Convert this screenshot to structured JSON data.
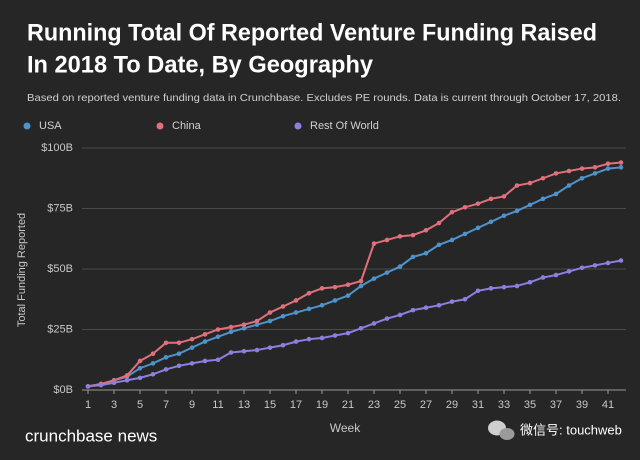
{
  "chart_data": {
    "type": "line",
    "title": [
      "Running Total Of Reported Venture Funding Raised",
      "In 2018 To Date, By Geography"
    ],
    "subtitle": "Based on reported venture funding data in Crunchbase. Excludes PE rounds.  Data is current through October 17, 2018.",
    "x_label": "Week",
    "y_label": "Total Funding Reported",
    "brand": "crunchbase news",
    "watermark": "微信号: touchweb",
    "x": [
      1,
      2,
      3,
      4,
      5,
      6,
      7,
      8,
      9,
      10,
      11,
      12,
      13,
      14,
      15,
      16,
      17,
      18,
      19,
      20,
      21,
      22,
      23,
      24,
      25,
      26,
      27,
      28,
      29,
      30,
      31,
      32,
      33,
      34,
      35,
      36,
      37,
      38,
      39,
      40,
      41,
      42
    ],
    "xlim": [
      1,
      42
    ],
    "xticks": [
      1,
      3,
      5,
      7,
      9,
      11,
      13,
      15,
      17,
      19,
      21,
      23,
      25,
      27,
      29,
      31,
      33,
      35,
      37,
      39,
      41
    ],
    "ylim": [
      0,
      100
    ],
    "yticks": [
      {
        "value": 0,
        "label": "$0B"
      },
      {
        "value": 25,
        "label": "$25B"
      },
      {
        "value": 50,
        "label": "$50B"
      },
      {
        "value": 75,
        "label": "$75B"
      },
      {
        "value": 100,
        "label": "$100B"
      }
    ],
    "grid": true,
    "series": [
      {
        "name": "USA",
        "color": "#4f93cc",
        "values": [
          1.5,
          2.5,
          4,
          5.5,
          9,
          11,
          13.5,
          15,
          17.5,
          20,
          22,
          24,
          25.5,
          27,
          28.5,
          30.5,
          32,
          33.5,
          35,
          37,
          39,
          43,
          46,
          48.5,
          51,
          55,
          56.5,
          60,
          62,
          64.5,
          67,
          69.5,
          72,
          74,
          76.5,
          79,
          81,
          84.5,
          87.5,
          89.5,
          91.5,
          92
        ]
      },
      {
        "name": "China",
        "color": "#e0707c",
        "values": [
          1.5,
          2.5,
          4,
          6,
          12,
          15,
          19.5,
          19.5,
          21,
          23,
          25,
          26,
          27,
          28.5,
          32,
          34.5,
          37,
          40,
          42,
          42.5,
          43.5,
          45,
          60.5,
          62,
          63.5,
          64,
          66,
          69,
          73.5,
          75.5,
          77,
          79,
          80,
          84.5,
          85.5,
          87.5,
          89.5,
          90.5,
          91.5,
          92,
          93.5,
          94
        ]
      },
      {
        "name": "Rest Of World",
        "color": "#8b80e0",
        "values": [
          1.5,
          2,
          3,
          4,
          5,
          6.5,
          8.5,
          10,
          11,
          12,
          12.5,
          15.5,
          16,
          16.5,
          17.5,
          18.5,
          20,
          21,
          21.5,
          22.5,
          23.5,
          25.5,
          27.5,
          29.5,
          31,
          33,
          34,
          35,
          36.5,
          37.5,
          41,
          42,
          42.5,
          43,
          44.5,
          46.5,
          47.5,
          49,
          50.5,
          51.5,
          52.5,
          53.5
        ]
      }
    ]
  }
}
